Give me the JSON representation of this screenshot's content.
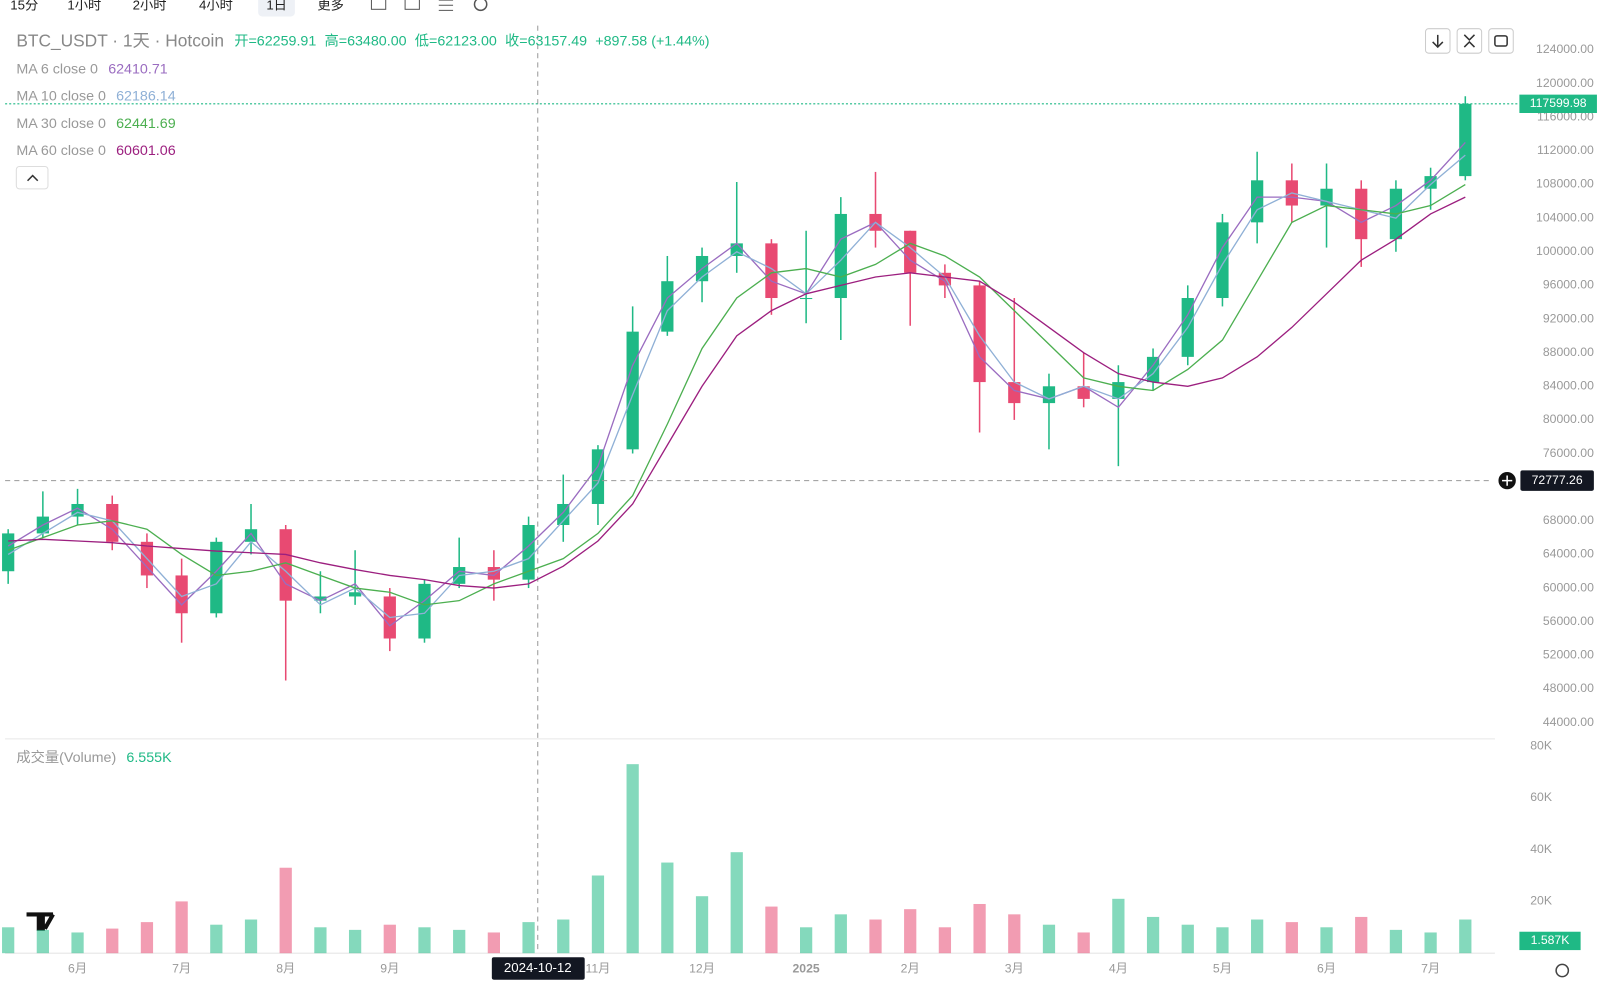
{
  "toolbar": [
    "15分",
    "1小时",
    "2小时",
    "4小时",
    "1日",
    "更多"
  ],
  "chart_data": {
    "type": "candlestick",
    "title": "BTC_USDT · 1天 · Hotcoin",
    "ohlc_info": [
      "开=62259.91",
      "高=63480.00",
      "低=62123.00",
      "收=63157.49",
      "+897.58 (+1.44%)"
    ],
    "categories": [
      null,
      null,
      "6月",
      null,
      null,
      "7月",
      null,
      null,
      "8月",
      null,
      null,
      "9月",
      null,
      null,
      null,
      null,
      null,
      "11月",
      null,
      null,
      "12月",
      null,
      null,
      "2025",
      null,
      null,
      "2月",
      null,
      null,
      "3月",
      null,
      null,
      "4月",
      null,
      null,
      "5月",
      null,
      null,
      "6月",
      null,
      null,
      "7月",
      null
    ],
    "open": [
      62000,
      66500,
      68500,
      70000,
      65500,
      61500,
      57000,
      65500,
      67000,
      58500,
      59000,
      59000,
      54000,
      60500,
      62500,
      61000,
      67500,
      70000,
      76500,
      90500,
      96500,
      99500,
      101000,
      94500,
      94500,
      104500,
      102500,
      97500,
      96000,
      84500,
      82000,
      84000,
      82500,
      84500,
      87500,
      94500,
      103500,
      108500,
      105500,
      107500,
      101500,
      107500,
      109000
    ],
    "high": [
      67000,
      71500,
      71800,
      71000,
      66500,
      63500,
      66000,
      70000,
      67500,
      62000,
      64500,
      60000,
      61000,
      66000,
      64500,
      68500,
      73500,
      77000,
      93500,
      99500,
      100500,
      108300,
      101500,
      102500,
      106500,
      109500,
      102500,
      98500,
      96500,
      94500,
      85500,
      88000,
      86500,
      88500,
      96000,
      104500,
      111900,
      110500,
      110500,
      108500,
      108500,
      110000,
      118500
    ],
    "low": [
      60500,
      66000,
      67500,
      64500,
      60000,
      53500,
      56500,
      64000,
      49000,
      57000,
      58000,
      52500,
      53500,
      60000,
      58500,
      60000,
      65500,
      67500,
      76000,
      90000,
      94000,
      97500,
      92500,
      91500,
      89500,
      100500,
      91200,
      94500,
      78500,
      80000,
      76500,
      81500,
      74500,
      83500,
      86500,
      93500,
      101000,
      103500,
      100500,
      98200,
      100000,
      105000,
      108500
    ],
    "close": [
      66500,
      68500,
      70000,
      65500,
      61500,
      57000,
      65500,
      67000,
      58500,
      59000,
      59500,
      54000,
      60500,
      62500,
      61000,
      67500,
      70000,
      76500,
      90500,
      96500,
      99500,
      101000,
      94500,
      94500,
      104500,
      102500,
      97500,
      96000,
      84500,
      82000,
      84000,
      82500,
      84500,
      87500,
      94500,
      103500,
      108500,
      105500,
      107500,
      101500,
      107500,
      109000,
      117600
    ],
    "up_color": "#1fb985",
    "down_color": "#e84a72",
    "ylim": [
      42300,
      126900
    ],
    "yticks": [
      {
        "value": 44000,
        "label": "44000.00"
      },
      {
        "value": 48000,
        "label": "48000.00"
      },
      {
        "value": 52000,
        "label": "52000.00"
      },
      {
        "value": 56000,
        "label": "56000.00"
      },
      {
        "value": 60000,
        "label": "60000.00"
      },
      {
        "value": 64000,
        "label": "64000.00"
      },
      {
        "value": 68000,
        "label": "68000.00"
      },
      {
        "value": 76000,
        "label": "76000.00"
      },
      {
        "value": 80000,
        "label": "80000.00"
      },
      {
        "value": 84000,
        "label": "84000.00"
      },
      {
        "value": 88000,
        "label": "88000.00"
      },
      {
        "value": 92000,
        "label": "92000.00"
      },
      {
        "value": 96000,
        "label": "96000.00"
      },
      {
        "value": 100000,
        "label": "100000.00"
      },
      {
        "value": 104000,
        "label": "104000.00"
      },
      {
        "value": 108000,
        "label": "108000.00"
      },
      {
        "value": 112000,
        "label": "112000.00"
      },
      {
        "value": 116000,
        "label": "116000.00"
      },
      {
        "value": 120000,
        "label": "120000.00"
      },
      {
        "value": 124000,
        "label": "124000.00"
      }
    ],
    "last_price": 117599.98,
    "crosshair": {
      "date": "2024-10-12",
      "price": 72777.26
    },
    "ma_lines": [
      {
        "name": "MA 6 close 0",
        "legend_value": "62410.71",
        "color": "#9a6cc0",
        "values": [
          65000,
          67500,
          69500,
          67000,
          62500,
          58000,
          62000,
          66500,
          60500,
          58500,
          60500,
          55500,
          58500,
          62000,
          61500,
          65000,
          69000,
          74500,
          86500,
          94500,
          98000,
          101000,
          96500,
          95000,
          101500,
          103500,
          99000,
          96500,
          87500,
          83500,
          82500,
          84000,
          81500,
          86500,
          92500,
          100500,
          106500,
          106500,
          106000,
          103500,
          105500,
          108500,
          113000
        ]
      },
      {
        "name": "MA 10 close 0",
        "legend_value": "62186.14",
        "color": "#8fb0d6",
        "values": [
          64000,
          66500,
          69000,
          68000,
          63500,
          59000,
          60500,
          65500,
          62000,
          58000,
          60000,
          56500,
          57000,
          61500,
          62000,
          63500,
          68000,
          72500,
          83000,
          93000,
          97000,
          100000,
          98000,
          95000,
          99000,
          103500,
          100500,
          97000,
          90000,
          84500,
          82500,
          84000,
          82500,
          85500,
          91000,
          98500,
          105000,
          107000,
          106000,
          105000,
          104000,
          108000,
          111500
        ]
      },
      {
        "name": "MA 30 close 0",
        "legend_value": "62441.69",
        "color": "#4caf50",
        "values": [
          64500,
          66000,
          67500,
          68000,
          67000,
          64000,
          61500,
          62000,
          63000,
          61500,
          60000,
          59500,
          58000,
          58500,
          60500,
          62000,
          63500,
          66500,
          71000,
          79500,
          88500,
          94500,
          97500,
          98000,
          97000,
          98500,
          101000,
          99500,
          97000,
          93000,
          89000,
          85000,
          84000,
          83500,
          86000,
          89500,
          96500,
          103500,
          105500,
          105000,
          104500,
          105500,
          108000
        ]
      },
      {
        "name": "MA 60 close 0",
        "legend_value": "60601.06",
        "color": "#9c1f7f",
        "values": [
          65600,
          65800,
          65600,
          65400,
          65000,
          64700,
          64400,
          64200,
          64000,
          63000,
          62200,
          61500,
          61000,
          60300,
          60000,
          60500,
          62600,
          65600,
          70000,
          77000,
          84000,
          90000,
          93000,
          95000,
          96000,
          97000,
          97500,
          97000,
          96500,
          94000,
          91000,
          88000,
          85500,
          84500,
          84000,
          85000,
          87500,
          91000,
          95000,
          99000,
          101500,
          104500,
          106500
        ]
      }
    ],
    "volume": {
      "title": "成交量(Volume)",
      "legend_value": "6.555K",
      "values": [
        10000,
        9000,
        8000,
        9500,
        12000,
        20000,
        11000,
        13000,
        33000,
        10000,
        9000,
        11000,
        10000,
        9000,
        8000,
        12000,
        13000,
        30000,
        73000,
        35000,
        22000,
        39000,
        18000,
        10000,
        15000,
        13000,
        17000,
        10000,
        19000,
        15000,
        11000,
        8000,
        21000,
        14000,
        11000,
        10000,
        13000,
        12000,
        10000,
        14000,
        9000,
        8000,
        13000
      ],
      "ylim": [
        0,
        80000
      ],
      "yticks": [
        {
          "value": 20000,
          "label": "20K"
        },
        {
          "value": 40000,
          "label": "40K"
        },
        {
          "value": 60000,
          "label": "60K"
        },
        {
          "value": 80000,
          "label": "80K"
        }
      ],
      "last": {
        "value": 1587,
        "label": "1.587K"
      }
    }
  }
}
